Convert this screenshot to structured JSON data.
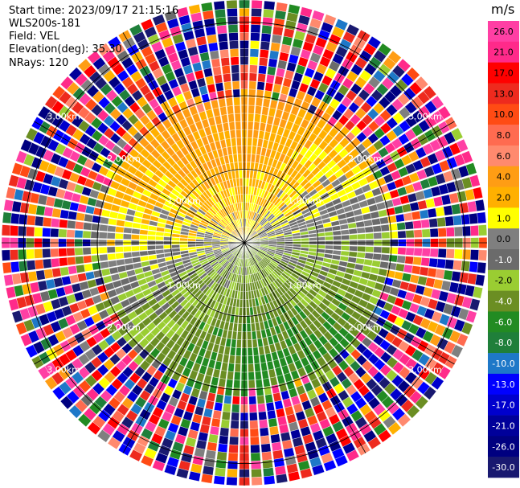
{
  "header": {
    "start_time": "Start time: 2023/09/17 21:15:16",
    "station": "WLS200s-181",
    "field": "Field: VEL",
    "elevation": "Elevation(deg): 35.30",
    "nrays": "NRays: 120"
  },
  "chart_data": {
    "type": "heatmap",
    "projection": "polar PPI scan",
    "field": "VEL",
    "units": "m/s",
    "elevation_deg": 35.3,
    "n_rays": 120,
    "range_rings_km": [
      1.0,
      2.0,
      3.0
    ],
    "ring_labels": [
      "1.00km",
      "2.00km",
      "3.00km"
    ],
    "max_range_km": 3.3,
    "colorbar": {
      "unit_label": "m/s",
      "tick_labels": [
        "26.0",
        "21.0",
        "17.0",
        "13.0",
        "10.0",
        "8.0",
        "6.0",
        "4.0",
        "2.0",
        "1.0",
        "0.0",
        "-1.0",
        "-2.0",
        "-4.0",
        "-6.0",
        "-8.0",
        "-10.0",
        "-13.0",
        "-17.0",
        "-21.0",
        "-26.0",
        "-30.0"
      ],
      "bins": [
        {
          "lo": 26.0,
          "hi": 30.0,
          "color": "#ff3fa4"
        },
        {
          "lo": 21.0,
          "hi": 26.0,
          "color": "#ff2a8a"
        },
        {
          "lo": 17.0,
          "hi": 21.0,
          "color": "#ff0000"
        },
        {
          "lo": 13.0,
          "hi": 17.0,
          "color": "#ee2a1e"
        },
        {
          "lo": 10.0,
          "hi": 13.0,
          "color": "#ff4b14"
        },
        {
          "lo": 8.0,
          "hi": 10.0,
          "color": "#ff6b50"
        },
        {
          "lo": 6.0,
          "hi": 8.0,
          "color": "#ff8a6e"
        },
        {
          "lo": 4.0,
          "hi": 6.0,
          "color": "#ff9d14"
        },
        {
          "lo": 2.0,
          "hi": 4.0,
          "color": "#ffb000"
        },
        {
          "lo": 1.0,
          "hi": 2.0,
          "color": "#ffff00"
        },
        {
          "lo": 0.0,
          "hi": 1.0,
          "color": "#7f7f7f"
        },
        {
          "lo": -1.0,
          "hi": 0.0,
          "color": "#6b6b6b"
        },
        {
          "lo": -2.0,
          "hi": -1.0,
          "color": "#9acd32"
        },
        {
          "lo": -4.0,
          "hi": -2.0,
          "color": "#6b8e23"
        },
        {
          "lo": -6.0,
          "hi": -4.0,
          "color": "#228b22"
        },
        {
          "lo": -8.0,
          "hi": -6.0,
          "color": "#1f7f3a"
        },
        {
          "lo": -10.0,
          "hi": -8.0,
          "color": "#1e78c8"
        },
        {
          "lo": -13.0,
          "hi": -10.0,
          "color": "#0000ff"
        },
        {
          "lo": -17.0,
          "hi": -13.0,
          "color": "#0000cd"
        },
        {
          "lo": -21.0,
          "hi": -17.0,
          "color": "#00009a"
        },
        {
          "lo": -26.0,
          "hi": -21.0,
          "color": "#000080"
        },
        {
          "lo": -30.0,
          "hi": -26.0,
          "color": "#191970"
        }
      ]
    }
  }
}
